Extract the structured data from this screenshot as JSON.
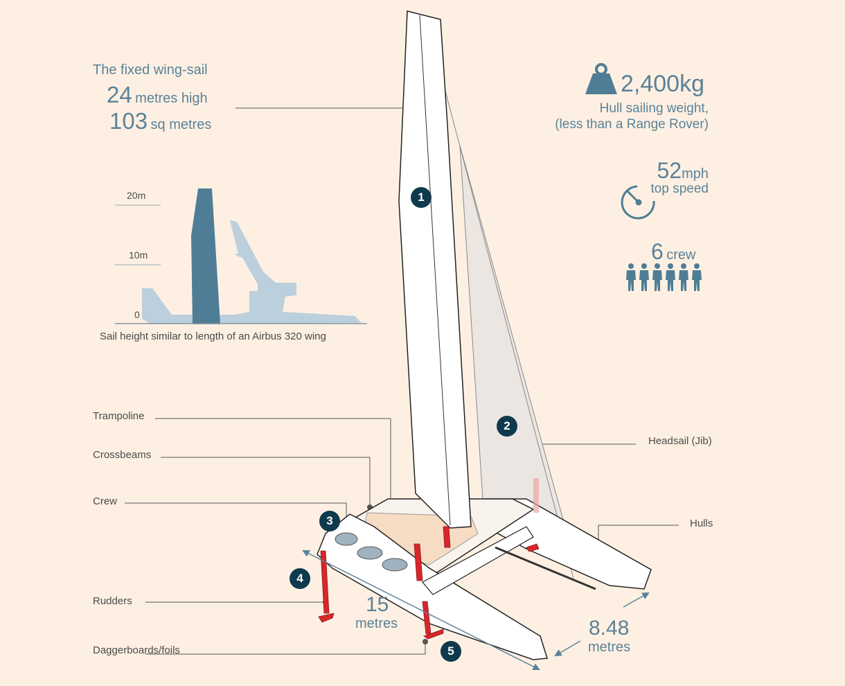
{
  "wingsail": {
    "title": "The fixed wing-sail",
    "height_value": "24",
    "height_unit": "metres high",
    "area_value": "103",
    "area_unit": "sq metres"
  },
  "comparison": {
    "tick_20": "20m",
    "tick_10": "10m",
    "tick_0": "0",
    "caption": "Sail height similar to length of an Airbus 320 wing"
  },
  "weight": {
    "value": "2,400kg",
    "line1": "Hull sailing weight,",
    "line2": "(less than a Range Rover)",
    "icon": "weight-icon"
  },
  "speed": {
    "value": "52",
    "unit": "mph",
    "label": "top speed",
    "icon": "speedometer-icon"
  },
  "crew": {
    "value": "6",
    "label": "crew",
    "count": 6,
    "icon": "person-icon"
  },
  "labels": {
    "trampoline": "Trampoline",
    "crossbeams": "Crossbeams",
    "crew": "Crew",
    "rudders": "Rudders",
    "daggerboards": "Daggerboards/foils",
    "headsail": "Headsail (Jib)",
    "hulls": "Hulls"
  },
  "dimensions": {
    "length_value": "15",
    "length_unit": "metres",
    "width_value": "8.48",
    "width_unit": "metres"
  },
  "markers": [
    "1",
    "2",
    "3",
    "4",
    "5"
  ],
  "colors": {
    "background": "#fdf0e2",
    "accent_blue": "#5b8299",
    "marker_dark": "#0f3a4d",
    "sail_teal": "#4f7d95",
    "plane_silhouette": "#bccfdd",
    "foil_red": "#d8262b"
  }
}
